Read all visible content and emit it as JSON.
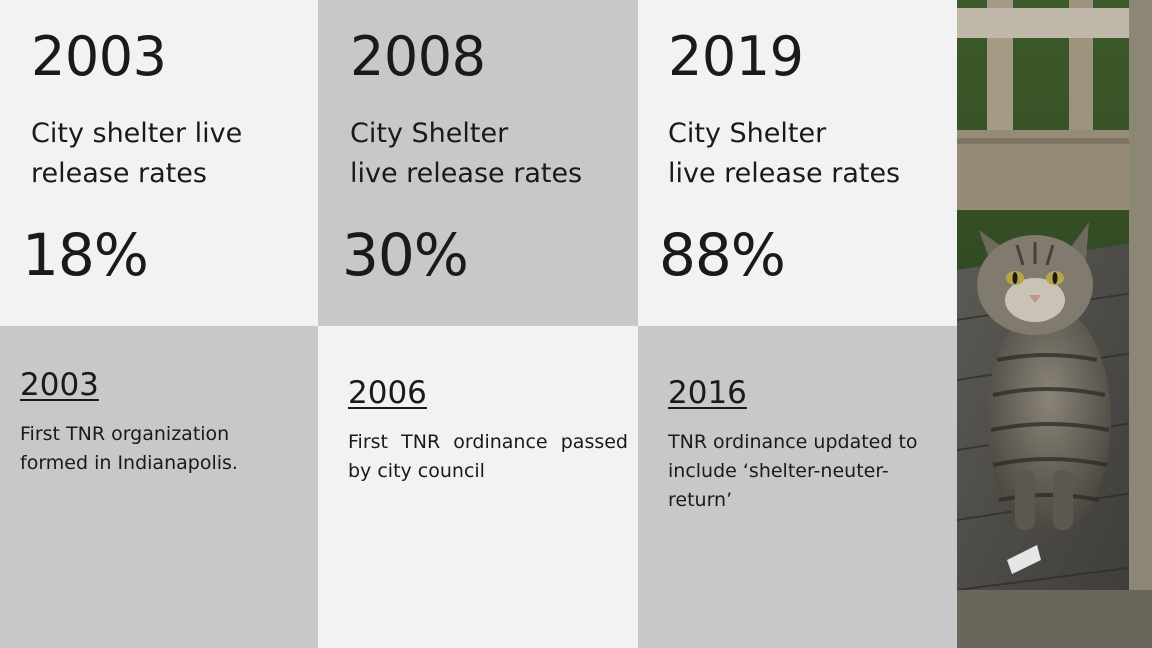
{
  "stats": [
    {
      "year": "2003",
      "metric": "City shelter live\nrelease rates",
      "rate": "18%"
    },
    {
      "year": "2008",
      "metric": "City Shelter\nlive release rates",
      "rate": "30%"
    },
    {
      "year": "2019",
      "metric": "City Shelter\nlive release rates",
      "rate": "88%"
    }
  ],
  "milestones": [
    {
      "year": "2003",
      "text": "First TNR organization formed in Indianapolis."
    },
    {
      "year": "2006",
      "text": "First TNR ordinance passed by city council"
    },
    {
      "year": "2016",
      "text": "TNR ordinance updated to include ‘shelter-neuter-return’"
    }
  ],
  "photo": {
    "subject": "tabby-cat-photo"
  }
}
